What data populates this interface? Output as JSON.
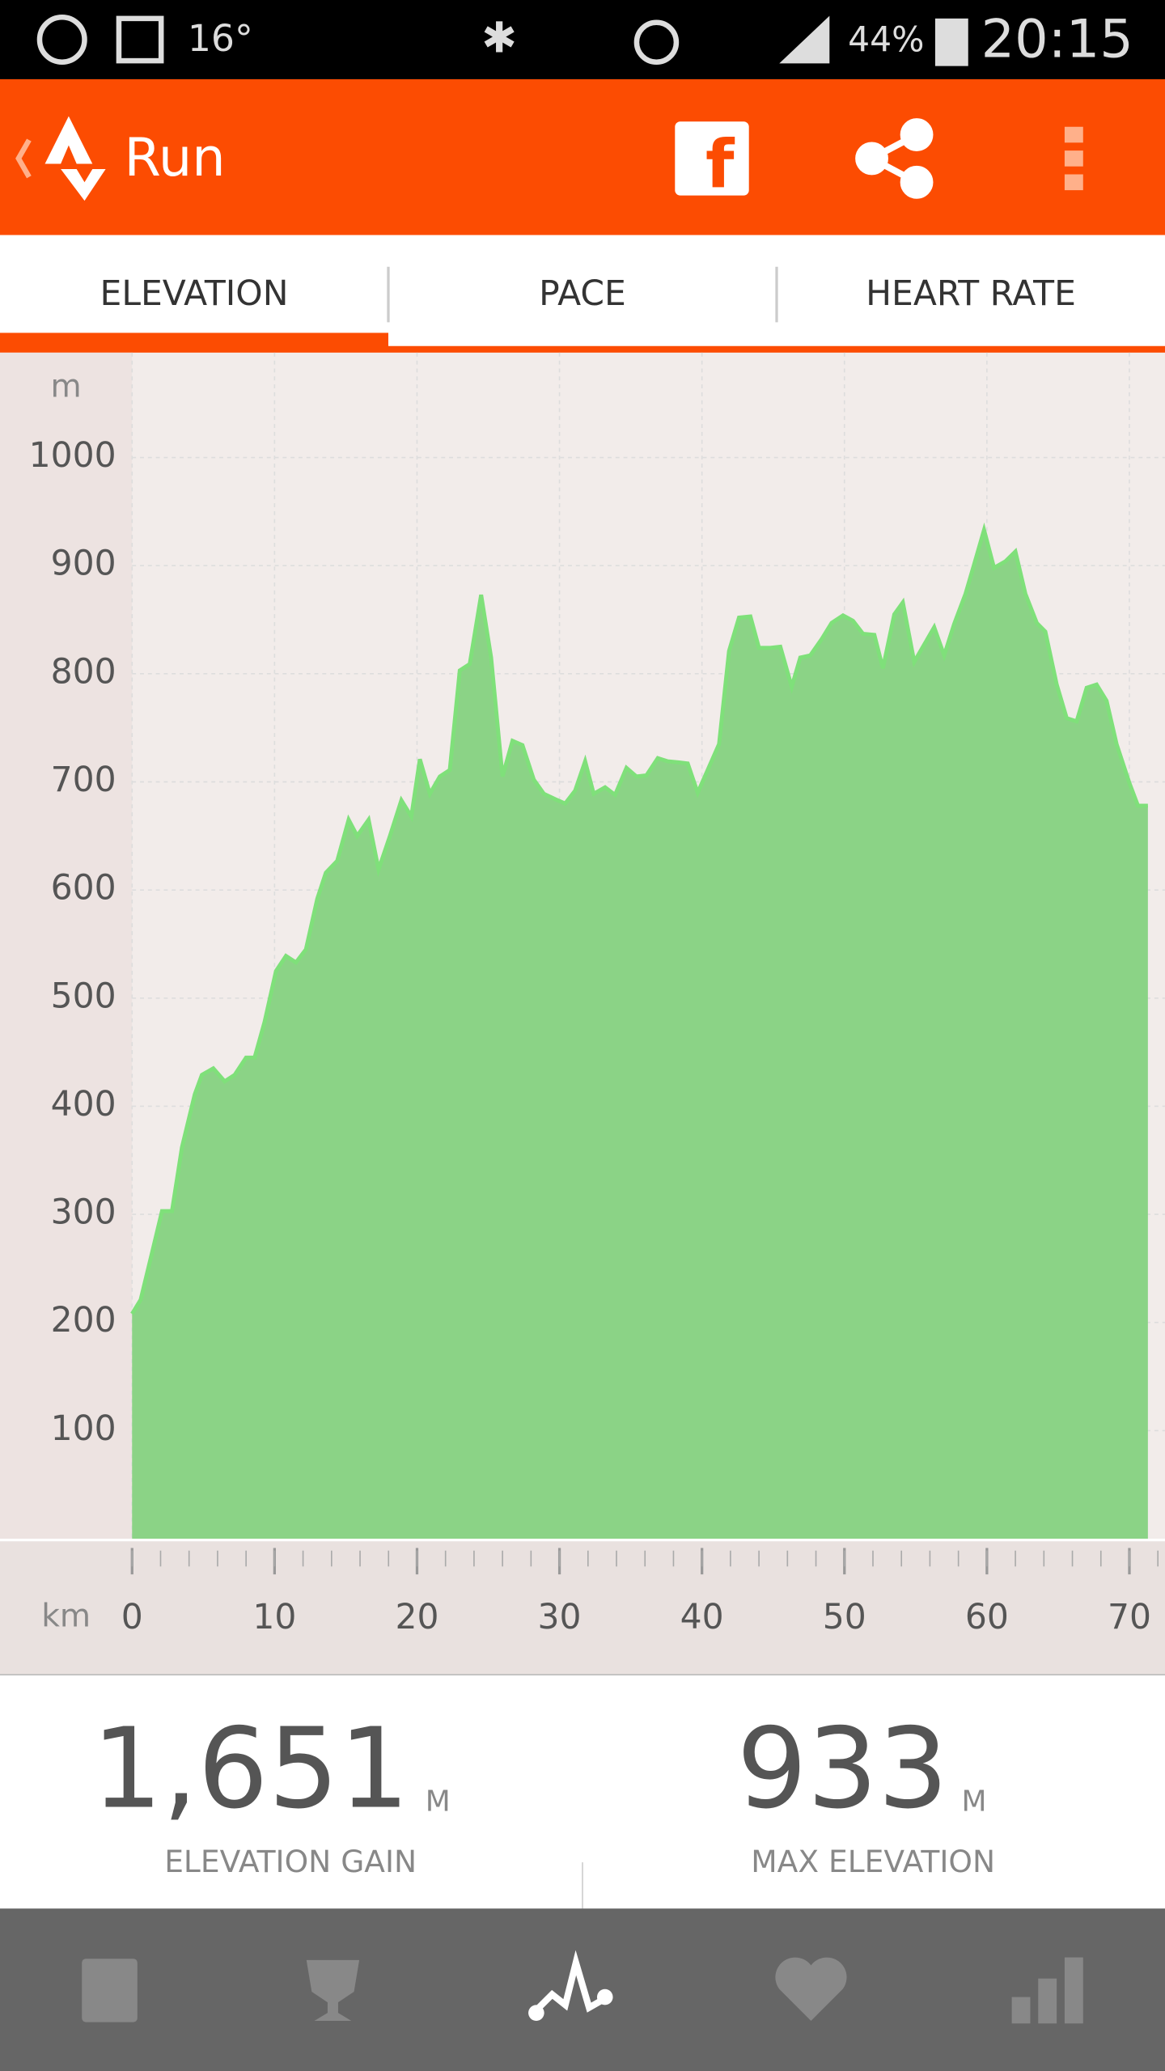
{
  "status_bar": {
    "temperature": "16°",
    "battery": "44%",
    "time": "20:15"
  },
  "app_bar": {
    "title": "Run"
  },
  "tabs": [
    "ELEVATION",
    "PACE",
    "HEART RATE"
  ],
  "chart_data": {
    "type": "area",
    "y_label": "m",
    "x_label": "km",
    "color": "#8bd386",
    "line_color": "#7fe07a",
    "grid": true,
    "xlim": [
      0,
      72.5
    ],
    "ylim": [
      0,
      1097
    ],
    "xticks": [
      0,
      10,
      20,
      30,
      40,
      50,
      60,
      70
    ],
    "yticks": [
      100,
      200,
      300,
      400,
      500,
      600,
      700,
      800,
      900,
      1000
    ],
    "x": [
      0,
      0.6,
      1.5,
      2.1,
      2.8,
      3.5,
      4.4,
      4.9,
      5.7,
      6.5,
      7.2,
      8.0,
      8.6,
      9.3,
      10.1,
      10.8,
      11.5,
      12.2,
      13.0,
      13.6,
      14.4,
      15.2,
      15.8,
      16.6,
      17.3,
      18.1,
      18.9,
      19.6,
      20.2,
      20.9,
      21.6,
      22.3,
      23.0,
      23.7,
      24.5,
      25.2,
      26.0,
      26.7,
      27.4,
      28.2,
      28.9,
      29.7,
      30.4,
      31.1,
      31.8,
      32.4,
      33.2,
      33.9,
      34.7,
      35.4,
      36.1,
      36.9,
      37.6,
      38.4,
      39.0,
      39.7,
      40.4,
      41.2,
      41.9,
      42.6,
      43.4,
      44.0,
      44.8,
      45.5,
      46.3,
      46.9,
      47.6,
      48.4,
      49.1,
      49.9,
      50.6,
      51.3,
      52.1,
      52.7,
      53.5,
      54.1,
      54.9,
      55.6,
      56.3,
      57.0,
      57.7,
      58.5,
      59.1,
      59.8,
      60.5,
      61.3,
      62.0,
      62.7,
      63.5,
      64.1,
      64.9,
      65.6,
      66.3,
      67.0,
      67.7,
      68.4,
      69.1,
      70.0,
      70.6,
      71.3
    ],
    "values": [
      208,
      221,
      270,
      303,
      303,
      362,
      411,
      429,
      435,
      423,
      429,
      445,
      445,
      478,
      525,
      539,
      533,
      545,
      592,
      616,
      627,
      665,
      650,
      665,
      619,
      650,
      683,
      668,
      721,
      689,
      705,
      711,
      803,
      809,
      873,
      815,
      705,
      738,
      734,
      702,
      689,
      684,
      680,
      692,
      719,
      689,
      695,
      688,
      713,
      705,
      706,
      722,
      719,
      718,
      717,
      690,
      711,
      735,
      821,
      852,
      853,
      824,
      824,
      825,
      788,
      815,
      817,
      832,
      847,
      854,
      849,
      837,
      836,
      805,
      855,
      866,
      811,
      827,
      843,
      817,
      846,
      874,
      901,
      933,
      898,
      904,
      913,
      874,
      847,
      839,
      790,
      759,
      756,
      787,
      790,
      775,
      735,
      699,
      678,
      678
    ]
  },
  "stats": [
    {
      "value": "1,651",
      "unit": "M",
      "label": "ELEVATION GAIN"
    },
    {
      "value": "933",
      "unit": "M",
      "label": "MAX ELEVATION"
    }
  ]
}
